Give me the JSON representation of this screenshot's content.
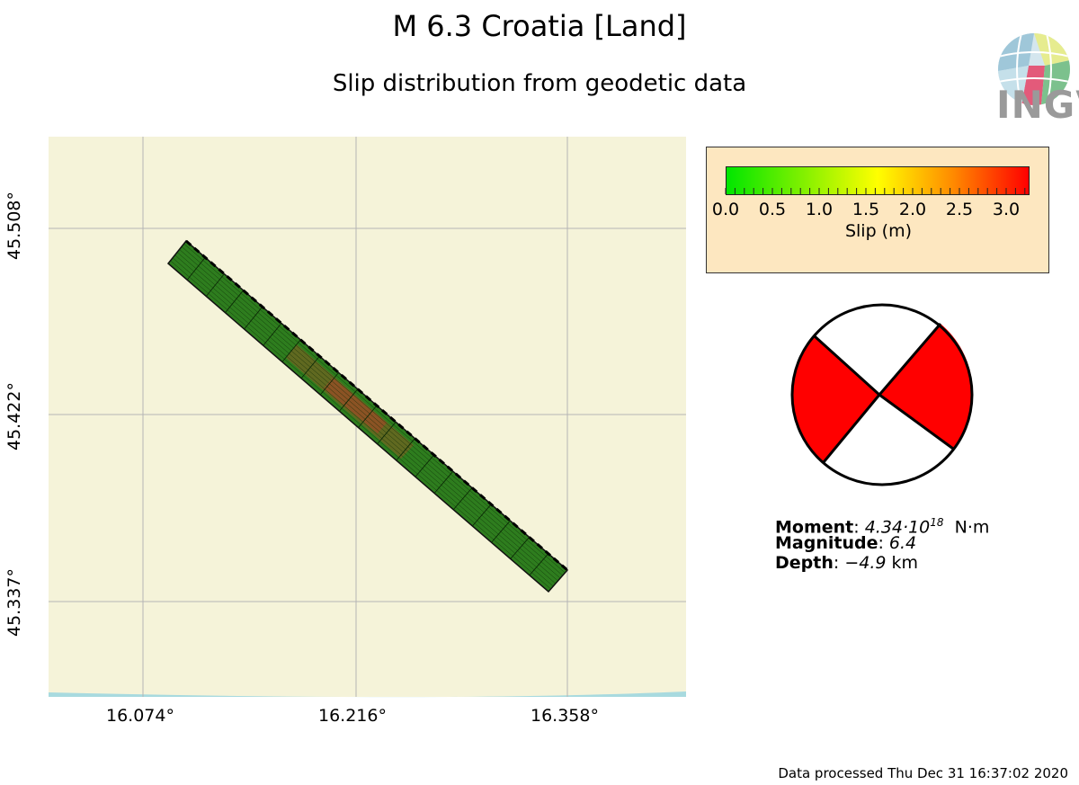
{
  "title": "M 6.3 Croatia [Land]",
  "subtitle": "Slip distribution from geodetic data",
  "logo": {
    "text": "INGV",
    "icon": "ingv-globe-logo"
  },
  "map": {
    "background": "#f5f3d9",
    "water_color": "#a8dadf",
    "grid": true,
    "x_ticks": [
      "16.074°",
      "16.216°",
      "16.358°"
    ],
    "y_ticks": [
      "45.508°",
      "45.422°",
      "45.337°"
    ],
    "fault_color": "#2e7d1e"
  },
  "colorbar": {
    "label": "Slip (m)",
    "ticks": [
      "0.0",
      "0.5",
      "1.0",
      "1.5",
      "2.0",
      "2.5",
      "3.0"
    ],
    "min": 0.0,
    "max": 3.25,
    "colors": [
      "#00e600",
      "#ffff00",
      "#ff0000"
    ]
  },
  "beachball": {
    "fill": "#ff0000",
    "icon": "focal-mechanism-beachball"
  },
  "info": {
    "moment_label": "Moment",
    "moment_value": "4.34·10",
    "moment_exp": "18",
    "moment_unit": "N·m",
    "magnitude_label": "Magnitude",
    "magnitude_value": "6.4",
    "depth_label": "Depth",
    "depth_value": "−4.9",
    "depth_unit": "km"
  },
  "footer": "Data processed Thu Dec 31 16:37:02 2020"
}
